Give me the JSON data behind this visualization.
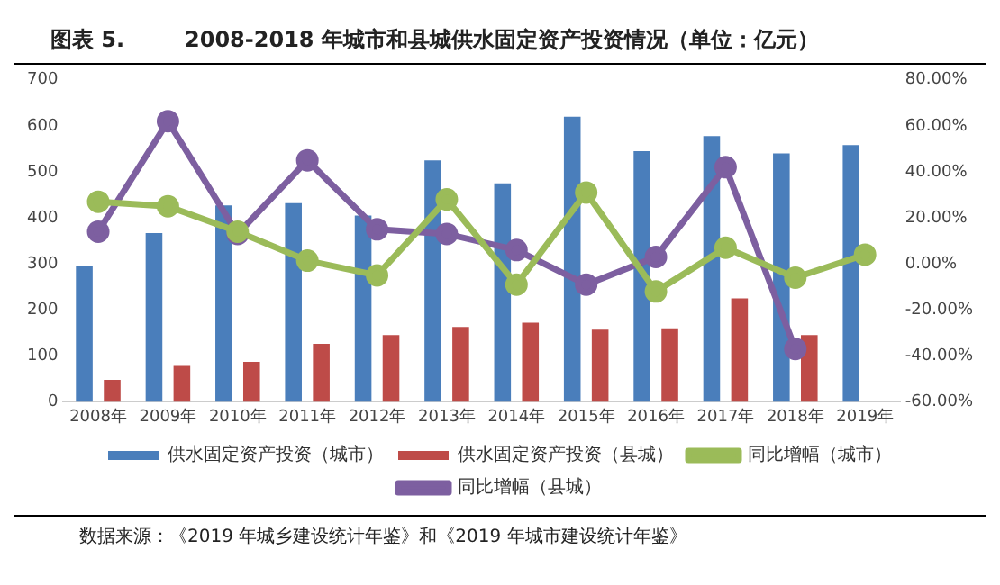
{
  "chart_data": {
    "type": "bar",
    "title": "图表 5.        2008-2018 年城市和县城供水固定资产投资情况（单位：亿元）",
    "categories": [
      "2008年",
      "2009年",
      "2010年",
      "2011年",
      "2012年",
      "2013年",
      "2014年",
      "2015年",
      "2016年",
      "2017年",
      "2018年",
      "2019年"
    ],
    "series": [
      {
        "name": "供水固定资产投资（城市）",
        "color": "#4a7ebb",
        "values": [
          295,
          367,
          427,
          432,
          405,
          525,
          475,
          620,
          545,
          578,
          540,
          558
        ]
      },
      {
        "name": "供水固定资产投资（县城）",
        "color": "#be4b48",
        "values": [
          48,
          78,
          87,
          126,
          145,
          163,
          172,
          157,
          160,
          225,
          145,
          null
        ]
      },
      {
        "name": "同比增幅（城市）",
        "type": "line",
        "axis": "y2",
        "color": "#9bbb59",
        "values": [
          27,
          25,
          14,
          1.4,
          -5,
          28,
          -9,
          31,
          -12,
          7,
          -6,
          4
        ]
      },
      {
        "name": "同比增幅（县城）",
        "type": "line",
        "axis": "y2",
        "color": "#7d5fa0",
        "values": [
          14,
          62,
          13,
          45,
          15,
          13,
          6,
          -9,
          3,
          42,
          -37,
          null
        ]
      }
    ],
    "ylim": [
      0,
      700
    ],
    "yticks": [
      0,
      100,
      200,
      300,
      400,
      500,
      600,
      700
    ],
    "y2lim": [
      -60,
      80
    ],
    "y2ticks": [
      {
        "value": -60,
        "label": "-60.00%"
      },
      {
        "value": -40,
        "label": "-40.00%"
      },
      {
        "value": -20,
        "label": "-20.00%"
      },
      {
        "value": 0,
        "label": "0.00%"
      },
      {
        "value": 20,
        "label": "20.00%"
      },
      {
        "value": 40,
        "label": "40.00%"
      },
      {
        "value": 60,
        "label": "60.00%"
      },
      {
        "value": 80,
        "label": "80.00%"
      }
    ],
    "marker": "circle",
    "legend": "bottom",
    "grid": false,
    "annotations": [
      "数据来源：《2019 年城乡建设统计年鉴》和《2019 年城市建设统计年鉴》"
    ]
  }
}
